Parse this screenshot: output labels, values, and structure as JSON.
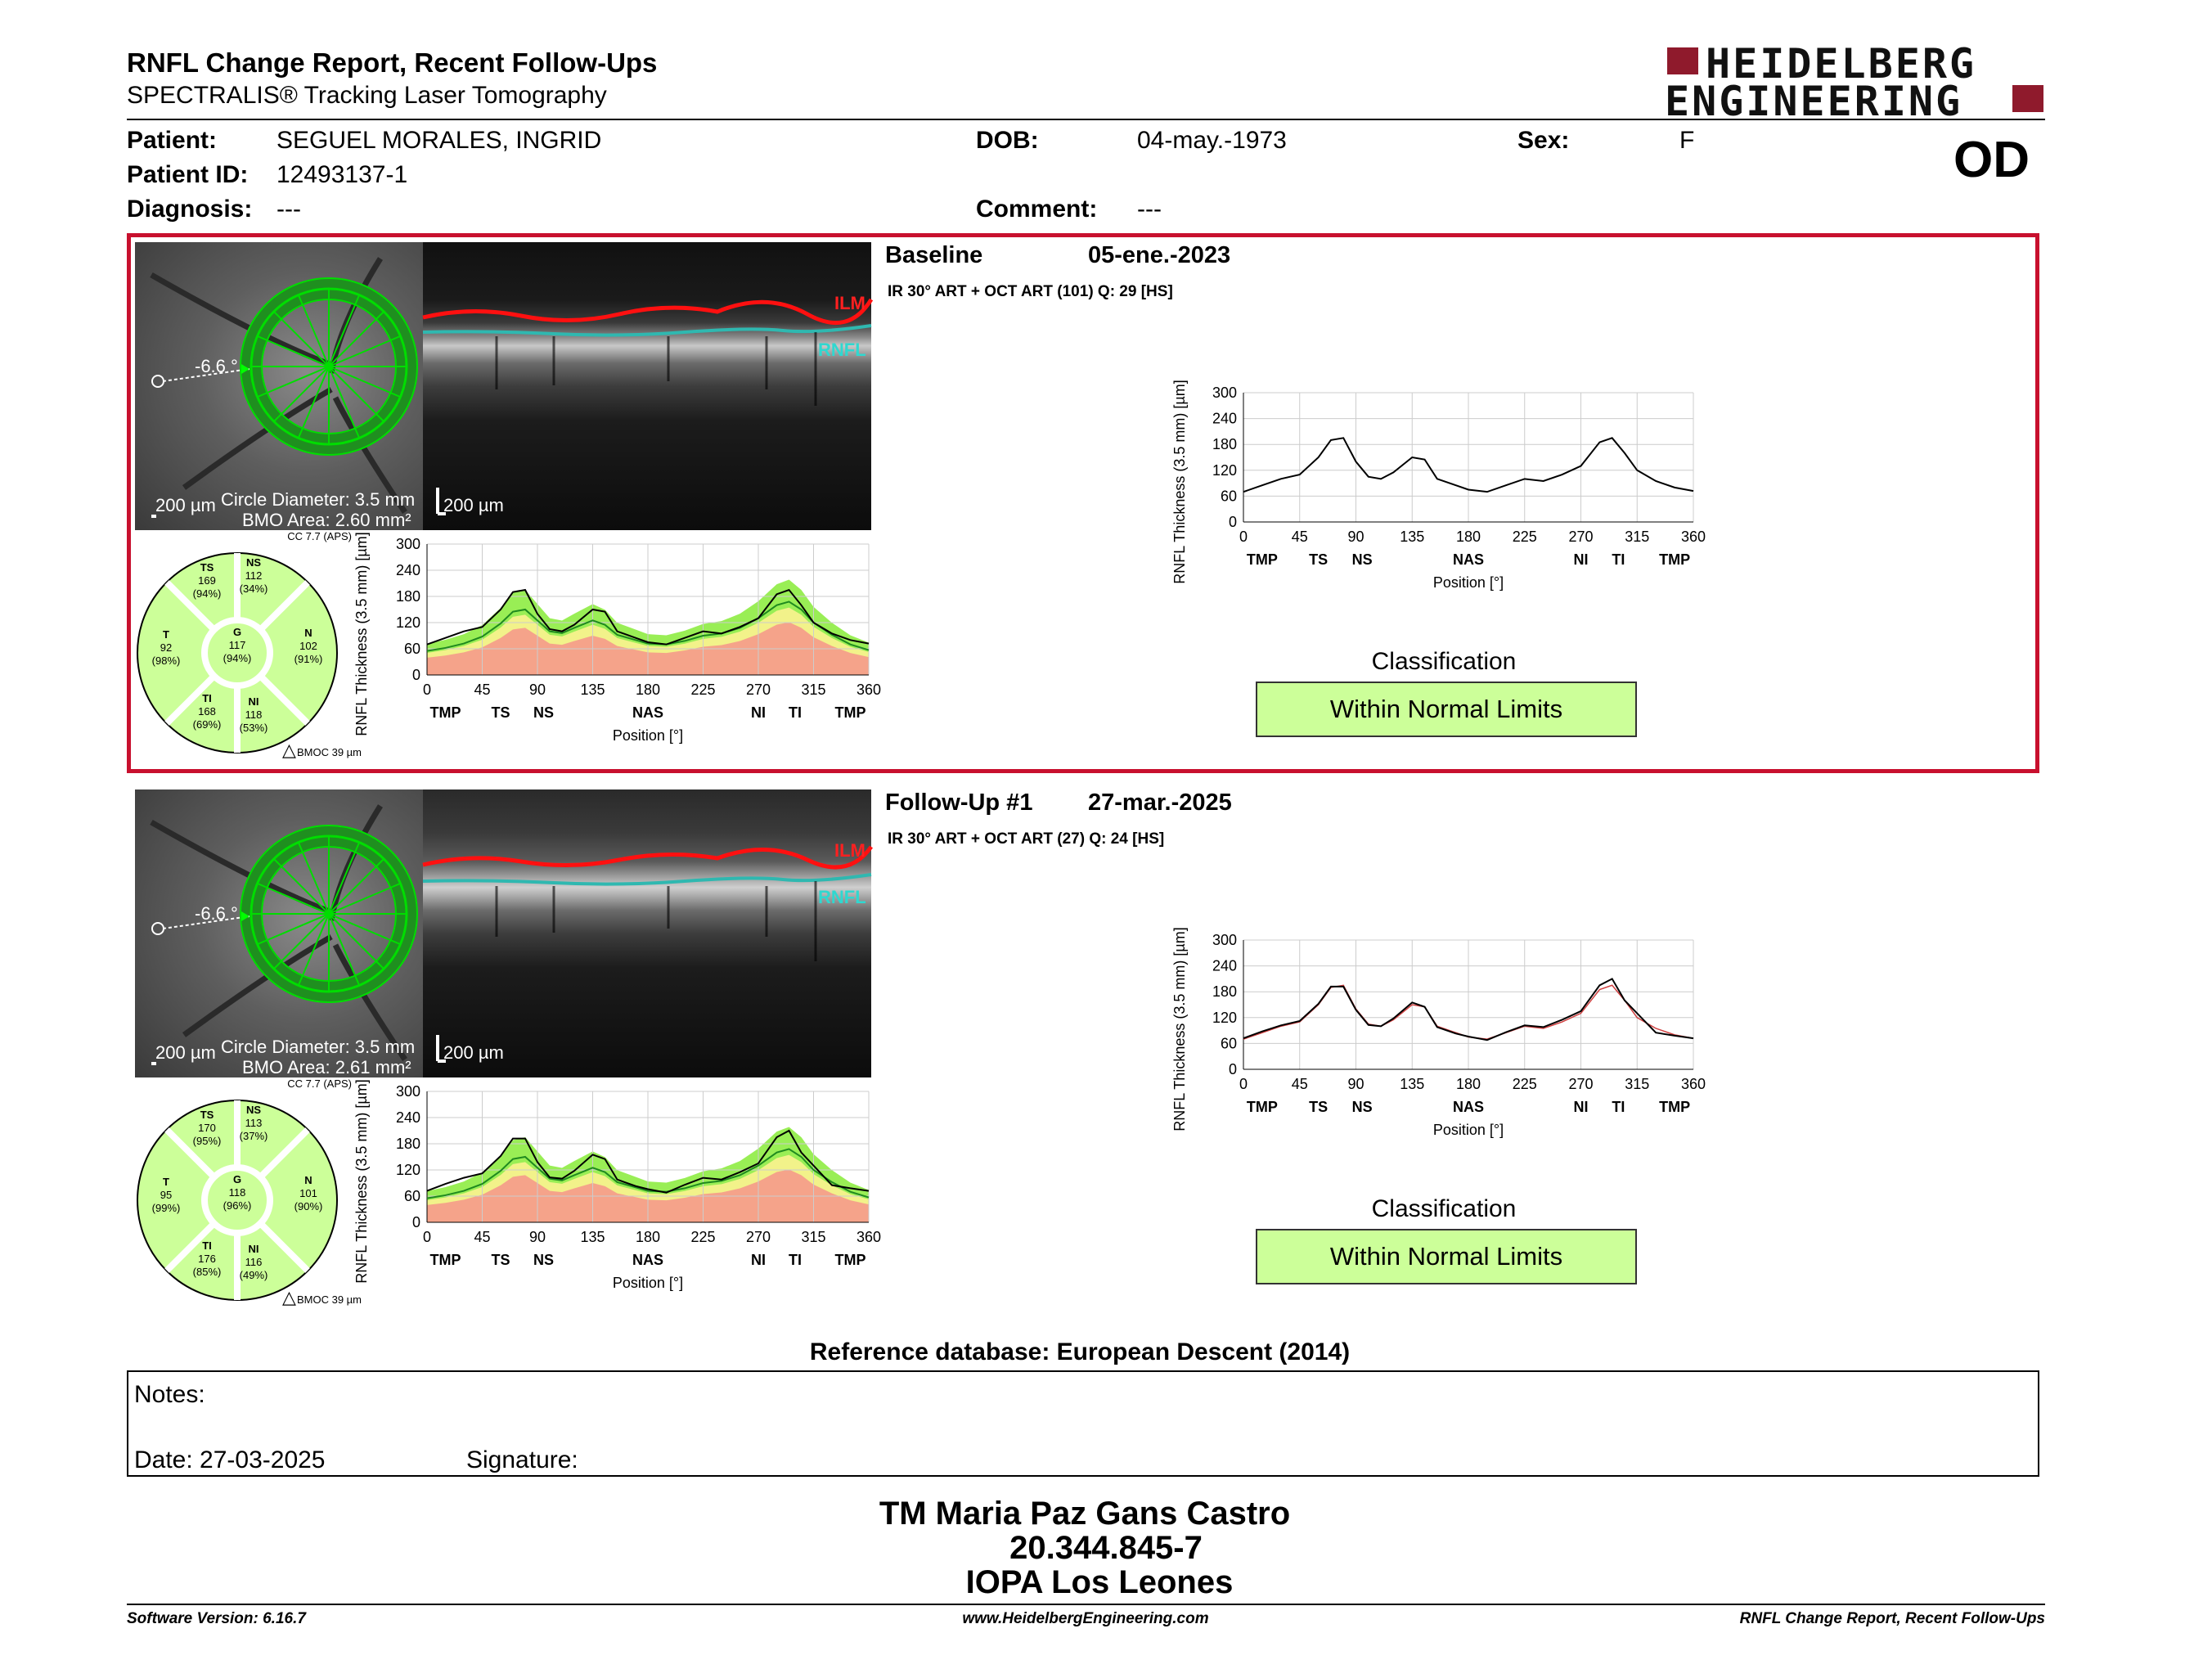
{
  "header": {
    "title": "RNFL Change Report, Recent Follow-Ups",
    "subtitle": "SPECTRALIS® Tracking Laser Tomography",
    "logo_line1": "HEIDELBERG",
    "logo_line2": "ENGINEERING",
    "eye": "OD"
  },
  "patient": {
    "name_label": "Patient:",
    "name": "SEGUEL MORALES, INGRID",
    "dob_label": "DOB:",
    "dob": "04-may.-1973",
    "sex_label": "Sex:",
    "sex": "F",
    "id_label": "Patient ID:",
    "id": "12493137-1",
    "diagnosis_label": "Diagnosis:",
    "diagnosis": "---",
    "comment_label": "Comment:",
    "comment": "---"
  },
  "baseline": {
    "title": "Baseline",
    "date": "05-ene.-2023",
    "scan_info": "IR 30° ART + OCT ART (101) Q: 29 [HS]",
    "angle": "-6.6 °",
    "scale_fundus": "200 µm",
    "scale_oct": "200 µm",
    "circle_diameter": "Circle Diameter: 3.5 mm",
    "bmo_area": "BMO Area: 2.60 mm²",
    "cc": "CC 7.7 (APS)",
    "bmoc": "BMOC 39 µm",
    "ilm": "ILM",
    "rnfl": "RNFL",
    "sectors": {
      "TS": {
        "label": "TS",
        "value": "169",
        "pct": "(94%)"
      },
      "NS": {
        "label": "NS",
        "value": "112",
        "pct": "(34%)"
      },
      "T": {
        "label": "T",
        "value": "92",
        "pct": "(98%)"
      },
      "G": {
        "label": "G",
        "value": "117",
        "pct": "(94%)"
      },
      "N": {
        "label": "N",
        "value": "102",
        "pct": "(91%)"
      },
      "TI": {
        "label": "TI",
        "value": "168",
        "pct": "(69%)"
      },
      "NI": {
        "label": "NI",
        "value": "118",
        "pct": "(53%)"
      }
    },
    "classification_title": "Classification",
    "classification": "Within Normal Limits"
  },
  "followup": {
    "title": "Follow-Up #1",
    "date": "27-mar.-2025",
    "scan_info": "IR 30° ART + OCT ART (27) Q: 24 [HS]",
    "angle": "-6.6 °",
    "scale_fundus": "200 µm",
    "scale_oct": "200 µm",
    "circle_diameter": "Circle Diameter: 3.5 mm",
    "bmo_area": "BMO Area: 2.61 mm²",
    "cc": "CC 7.7 (APS)",
    "bmoc": "BMOC 39 µm",
    "ilm": "ILM",
    "rnfl": "RNFL",
    "sectors": {
      "TS": {
        "label": "TS",
        "value": "170",
        "pct": "(95%)"
      },
      "NS": {
        "label": "NS",
        "value": "113",
        "pct": "(37%)"
      },
      "T": {
        "label": "T",
        "value": "95",
        "pct": "(99%)"
      },
      "G": {
        "label": "G",
        "value": "118",
        "pct": "(96%)"
      },
      "N": {
        "label": "N",
        "value": "101",
        "pct": "(90%)"
      },
      "TI": {
        "label": "TI",
        "value": "176",
        "pct": "(85%)"
      },
      "NI": {
        "label": "NI",
        "value": "116",
        "pct": "(49%)"
      }
    },
    "classification_title": "Classification",
    "classification": "Within Normal Limits"
  },
  "reference_db": "Reference database: European Descent (2014)",
  "notes": {
    "notes_label": "Notes:",
    "date_label": "Date: 27-03-2025",
    "signature_label": "Signature:"
  },
  "signer": {
    "name": "TM Maria Paz Gans Castro",
    "rut": "20.344.845-7",
    "institution": "IOPA Los Leones"
  },
  "footer": {
    "left": "Software Version: 6.16.7",
    "center": "www.HeidelbergEngineering.com",
    "right": "RNFL Change Report, Recent Follow-Ups"
  },
  "chart_data": [
    {
      "type": "line",
      "title": "",
      "xlabel": "Position [°]",
      "ylabel": "RNFL Thickness (3.5 mm) [µm]",
      "xlim": [
        0,
        360
      ],
      "ylim": [
        0,
        300
      ],
      "x_ticks": [
        "0",
        "45",
        "90",
        "135",
        "180",
        "225",
        "270",
        "315",
        "360"
      ],
      "y_ticks": [
        "0",
        "60",
        "120",
        "180",
        "240",
        "300"
      ],
      "sector_ticks": [
        "TMP",
        "TS",
        "NS",
        "NAS",
        "NI",
        "TI",
        "TMP"
      ],
      "x": [
        0,
        15,
        30,
        45,
        60,
        70,
        80,
        90,
        100,
        110,
        120,
        135,
        145,
        155,
        170,
        180,
        195,
        210,
        225,
        240,
        255,
        270,
        285,
        295,
        305,
        315,
        330,
        345,
        360
      ],
      "series": [
        {
          "values": [
            70,
            85,
            100,
            110,
            150,
            190,
            195,
            140,
            105,
            100,
            115,
            150,
            145,
            100,
            85,
            75,
            70,
            85,
            100,
            95,
            110,
            130,
            185,
            195,
            160,
            120,
            95,
            80,
            72
          ]
        },
        {
          "values": [
            55,
            62,
            72,
            88,
            118,
            145,
            150,
            125,
            100,
            96,
            108,
            125,
            115,
            92,
            80,
            72,
            70,
            78,
            90,
            95,
            108,
            130,
            160,
            168,
            150,
            120,
            92,
            70,
            57
          ]
        }
      ]
    },
    {
      "type": "line",
      "title": "",
      "xlabel": "Position [°]",
      "ylabel": "RNFL Thickness (3.5 mm) [µm]",
      "xlim": [
        0,
        360
      ],
      "ylim": [
        0,
        300
      ],
      "x_ticks": [
        "0",
        "45",
        "90",
        "135",
        "180",
        "225",
        "270",
        "315",
        "360"
      ],
      "y_ticks": [
        "0",
        "60",
        "120",
        "180",
        "240",
        "300"
      ],
      "sector_ticks": [
        "TMP",
        "TS",
        "NS",
        "NAS",
        "NI",
        "TI",
        "TMP"
      ],
      "x": [
        0,
        15,
        30,
        45,
        60,
        70,
        80,
        90,
        100,
        110,
        120,
        135,
        145,
        155,
        170,
        180,
        195,
        210,
        225,
        240,
        255,
        270,
        285,
        295,
        305,
        315,
        330,
        345,
        360
      ],
      "series": [
        {
          "values": [
            72,
            88,
            102,
            112,
            152,
            192,
            192,
            138,
            103,
            100,
            118,
            155,
            145,
            98,
            83,
            76,
            68,
            86,
            102,
            98,
            115,
            135,
            195,
            210,
            160,
            130,
            85,
            78,
            72
          ]
        },
        {
          "values": [
            55,
            62,
            72,
            88,
            118,
            145,
            150,
            125,
            100,
            96,
            108,
            125,
            115,
            92,
            80,
            72,
            70,
            78,
            90,
            95,
            108,
            130,
            160,
            168,
            150,
            120,
            92,
            70,
            57
          ]
        }
      ]
    }
  ]
}
